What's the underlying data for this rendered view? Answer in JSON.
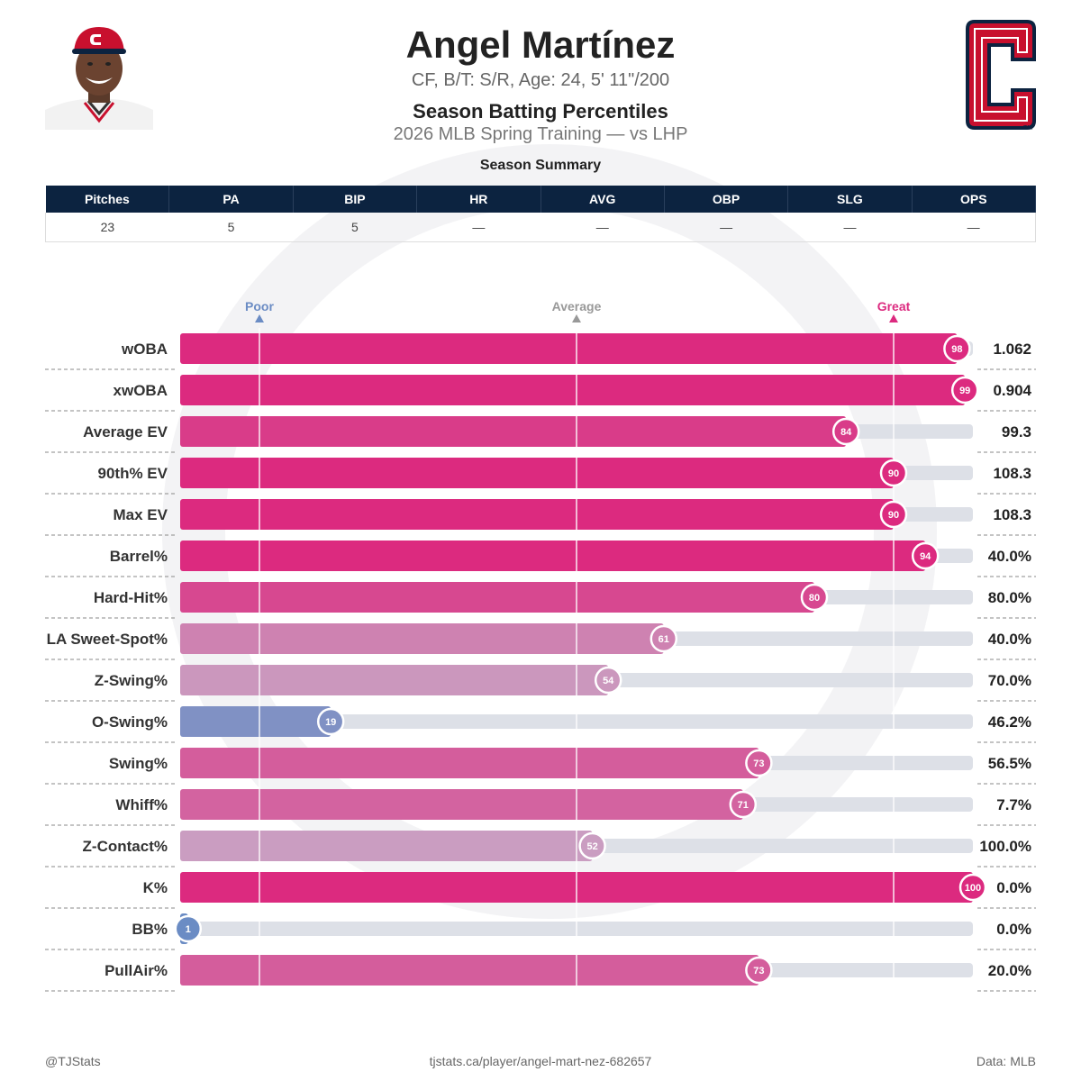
{
  "header": {
    "player_name": "Angel Martínez",
    "player_info": "CF, B/T: S/R, Age: 24, 5' 11\"/200",
    "section_title": "Season Batting Percentiles",
    "subtitle": "2026 MLB Spring Training — vs LHP"
  },
  "summary": {
    "title": "Season Summary",
    "columns": [
      "Pitches",
      "PA",
      "BIP",
      "HR",
      "AVG",
      "OBP",
      "SLG",
      "OPS"
    ],
    "values": [
      "23",
      "5",
      "5",
      "—",
      "—",
      "—",
      "—",
      "—"
    ]
  },
  "colors": {
    "great": "#dc2a7f",
    "average": "#c9a3c4",
    "poor": "#6b8cc4",
    "track": "#dde0e7",
    "table_header": "#0c2340"
  },
  "chart_data": {
    "type": "bar",
    "orientation": "horizontal",
    "xlim": [
      0,
      100
    ],
    "markers": [
      {
        "label": "Poor",
        "value": 10
      },
      {
        "label": "Average",
        "value": 50
      },
      {
        "label": "Great",
        "value": 90
      }
    ],
    "categories": [
      "wOBA",
      "xwOBA",
      "Average EV",
      "90th% EV",
      "Max EV",
      "Barrel%",
      "Hard-Hit%",
      "LA Sweet-Spot%",
      "Z-Swing%",
      "O-Swing%",
      "Swing%",
      "Whiff%",
      "Z-Contact%",
      "K%",
      "BB%",
      "PullAir%"
    ],
    "percentiles": [
      98,
      99,
      84,
      90,
      90,
      94,
      80,
      61,
      54,
      19,
      73,
      71,
      52,
      100,
      1,
      73
    ],
    "stat_values": [
      "1.062",
      "0.904",
      "99.3",
      "108.3",
      "108.3",
      "40.0%",
      "80.0%",
      "40.0%",
      "70.0%",
      "46.2%",
      "56.5%",
      "7.7%",
      "100.0%",
      "0.0%",
      "0.0%",
      "20.0%"
    ]
  },
  "footer": {
    "left": "@TJStats",
    "middle": "tjstats.ca/player/angel-mart-nez-682657",
    "right": "Data: MLB"
  }
}
